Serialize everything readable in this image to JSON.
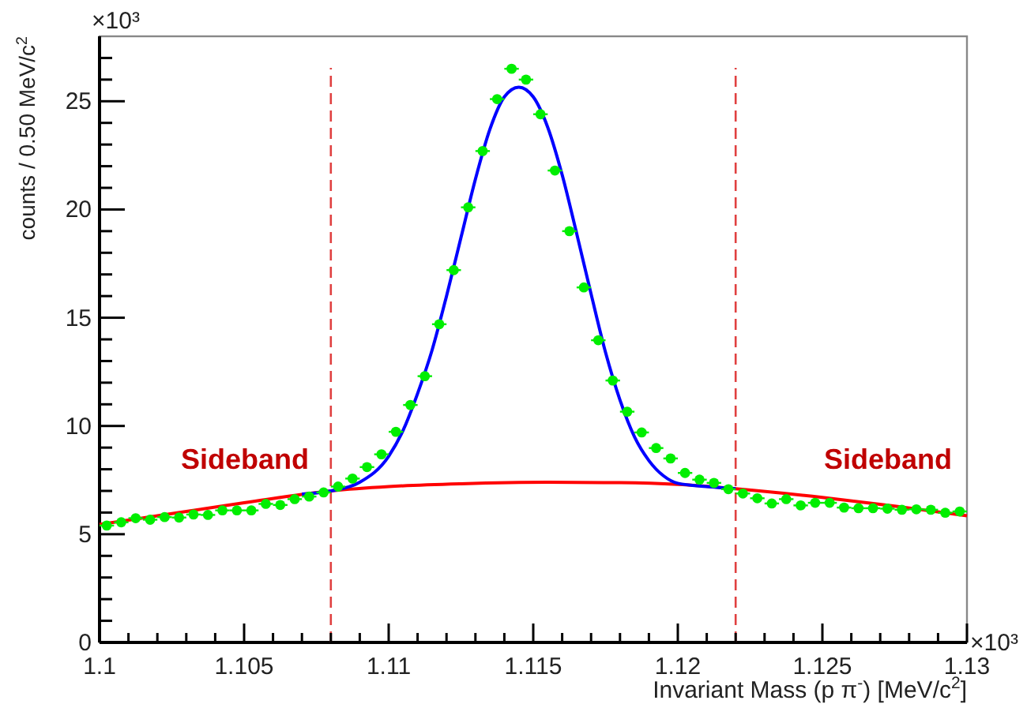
{
  "chart_data": {
    "type": "scatter",
    "xlabel": "Invariant Mass (p π$^{-}$) [MeV/c$^{2}$]",
    "ylabel": "counts / 0.50 MeV/c$^{2}$",
    "x": [
      1.10025,
      1.10075,
      1.10125,
      1.10175,
      1.10225,
      1.10275,
      1.10325,
      1.10375,
      1.10425,
      1.10475,
      1.10525,
      1.10575,
      1.10625,
      1.10675,
      1.10725,
      1.10775,
      1.10825,
      1.10875,
      1.10925,
      1.10975,
      1.11025,
      1.11075,
      1.11125,
      1.11175,
      1.11225,
      1.11275,
      1.11325,
      1.11375,
      1.11425,
      1.11475,
      1.11525,
      1.11575,
      1.11625,
      1.11675,
      1.11725,
      1.11775,
      1.11825,
      1.11875,
      1.11925,
      1.11975,
      1.12025,
      1.12075,
      1.12125,
      1.12175,
      1.12225,
      1.12275,
      1.12325,
      1.12375,
      1.12425,
      1.12475,
      1.12525,
      1.12575,
      1.12625,
      1.12675,
      1.12725,
      1.12775,
      1.12825,
      1.12875,
      1.12925,
      1.12975
    ],
    "series": [
      {
        "color": "#00ee00",
        "marker": "circle",
        "values": [
          5.4,
          5.55,
          5.74,
          5.67,
          5.79,
          5.77,
          5.91,
          5.89,
          6.1,
          6.1,
          6.1,
          6.4,
          6.35,
          6.62,
          6.74,
          6.93,
          7.2,
          7.57,
          8.1,
          8.69,
          9.73,
          10.97,
          12.3,
          14.7,
          17.2,
          20.1,
          22.7,
          25.1,
          26.5,
          26.0,
          24.4,
          21.8,
          19.0,
          16.4,
          13.96,
          12.1,
          10.66,
          9.7,
          8.98,
          8.5,
          7.83,
          7.52,
          7.37,
          7.08,
          6.88,
          6.66,
          6.42,
          6.62,
          6.33,
          6.45,
          6.45,
          6.23,
          6.2,
          6.2,
          6.18,
          6.13,
          6.15,
          6.13,
          5.99,
          6.05
        ],
        "xerrors": [
          0.00025,
          0.00025,
          0.00025,
          0.00025,
          0.00025,
          0.00025,
          0.00025,
          0.00025,
          0.00025,
          0.00025,
          0.00025,
          0.00025,
          0.00025,
          0.00025,
          0.00025,
          0.00025,
          0.00025,
          0.00025,
          0.00025,
          0.00025,
          0.00025,
          0.00025,
          0.00025,
          0.00025,
          0.00025,
          0.00025,
          0.00025,
          0.00025,
          0.00025,
          0.00025,
          0.00025,
          0.00025,
          0.00025,
          0.00025,
          0.00025,
          0.00025,
          0.00025,
          0.00025,
          0.00025,
          0.00025,
          0.00025,
          0.00025,
          0.00025,
          0.00025,
          0.00025,
          0.00025,
          0.00025,
          0.00025,
          0.00025,
          0.00025,
          0.00025,
          0.00025,
          0.00025,
          0.00025,
          0.00025,
          0.00025,
          0.00025,
          0.00025,
          0.00025,
          0.00025
        ]
      },
      {
        "type": "line",
        "color": "#ff0000",
        "marker": "none",
        "x": [
          1.1,
          1.102,
          1.105,
          1.108,
          1.11,
          1.1125,
          1.1155,
          1.118,
          1.12,
          1.122,
          1.125,
          1.1275,
          1.13
        ],
        "values": [
          5.45,
          5.85,
          6.45,
          7.0,
          7.2,
          7.33,
          7.4,
          7.38,
          7.3,
          7.1,
          6.7,
          6.3,
          5.85
        ]
      },
      {
        "type": "line",
        "color": "#0000ff",
        "marker": "none",
        "x": [
          1.107,
          1.108,
          1.109,
          1.11,
          1.1105,
          1.111,
          1.1115,
          1.112,
          1.1125,
          1.113,
          1.1135,
          1.114,
          1.1145,
          1.115,
          1.1155,
          1.116,
          1.1165,
          1.117,
          1.1175,
          1.118,
          1.1185,
          1.119,
          1.1195,
          1.12,
          1.121,
          1.122
        ],
        "values": [
          6.85,
          7.0,
          7.4,
          8.6,
          9.8,
          11.5,
          13.5,
          16.0,
          18.7,
          21.4,
          23.7,
          25.2,
          25.65,
          25.2,
          23.8,
          21.6,
          18.9,
          16.1,
          13.4,
          11.2,
          9.5,
          8.4,
          7.7,
          7.35,
          7.2,
          7.1
        ]
      }
    ],
    "xlim": [
      1.1,
      1.13
    ],
    "ylim": [
      0,
      28
    ],
    "xticks": [
      {
        "value": 1.1,
        "label": "1.1"
      },
      {
        "value": 1.101,
        "label": null
      },
      {
        "value": 1.102,
        "label": null
      },
      {
        "value": 1.103,
        "label": null
      },
      {
        "value": 1.104,
        "label": null
      },
      {
        "value": 1.105,
        "label": "1.105"
      },
      {
        "value": 1.106,
        "label": null
      },
      {
        "value": 1.107,
        "label": null
      },
      {
        "value": 1.108,
        "label": null
      },
      {
        "value": 1.109,
        "label": null
      },
      {
        "value": 1.11,
        "label": "1.11"
      },
      {
        "value": 1.111,
        "label": null
      },
      {
        "value": 1.112,
        "label": null
      },
      {
        "value": 1.113,
        "label": null
      },
      {
        "value": 1.114,
        "label": null
      },
      {
        "value": 1.115,
        "label": "1.115"
      },
      {
        "value": 1.116,
        "label": null
      },
      {
        "value": 1.117,
        "label": null
      },
      {
        "value": 1.118,
        "label": null
      },
      {
        "value": 1.119,
        "label": null
      },
      {
        "value": 1.12,
        "label": "1.12"
      },
      {
        "value": 1.121,
        "label": null
      },
      {
        "value": 1.122,
        "label": null
      },
      {
        "value": 1.123,
        "label": null
      },
      {
        "value": 1.124,
        "label": null
      },
      {
        "value": 1.125,
        "label": "1.125"
      },
      {
        "value": 1.126,
        "label": null
      },
      {
        "value": 1.127,
        "label": null
      },
      {
        "value": 1.128,
        "label": null
      },
      {
        "value": 1.129,
        "label": null
      },
      {
        "value": 1.13,
        "label": "1.13"
      }
    ],
    "yticks": [
      0,
      {
        "value": 1,
        "label": null
      },
      {
        "value": 2,
        "label": null
      },
      {
        "value": 3,
        "label": null
      },
      {
        "value": 4,
        "label": null
      },
      5,
      {
        "value": 6,
        "label": null
      },
      {
        "value": 7,
        "label": null
      },
      {
        "value": 8,
        "label": null
      },
      {
        "value": 9,
        "label": null
      },
      10,
      {
        "value": 11,
        "label": null
      },
      {
        "value": 12,
        "label": null
      },
      {
        "value": 13,
        "label": null
      },
      {
        "value": 14,
        "label": null
      },
      15,
      {
        "value": 16,
        "label": null
      },
      {
        "value": 17,
        "label": null
      },
      {
        "value": 18,
        "label": null
      },
      {
        "value": 19,
        "label": null
      },
      20,
      {
        "value": 21,
        "label": null
      },
      {
        "value": 22,
        "label": null
      },
      {
        "value": 23,
        "label": null
      },
      {
        "value": 24,
        "label": null
      },
      25,
      {
        "value": 26,
        "label": null
      },
      {
        "value": 27,
        "label": null
      }
    ],
    "ref_lines": [
      {
        "axis": "x",
        "value": 1.108,
        "color": "#e04040",
        "line_style": "dashed"
      },
      {
        "axis": "x",
        "value": 1.122,
        "color": "#e04040",
        "line_style": "dashed"
      }
    ],
    "annotations": [
      "×10³",
      "×10³",
      "Sideband",
      "Sideband"
    ]
  }
}
